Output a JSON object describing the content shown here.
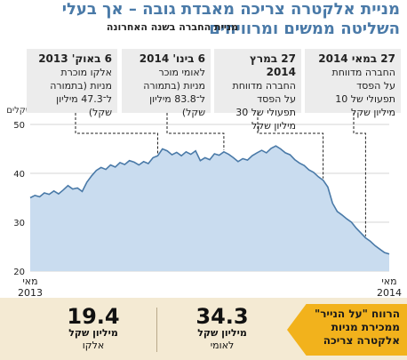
{
  "header": {
    "title_line1": "מניית אלקטרה צריכה מאבדת גובה – אך בעלי",
    "title_line2": "השליטה ממשים ומרוויחים",
    "subtitle": "מניית החברה בשנה האחרונה"
  },
  "callouts": [
    {
      "date": "6 באוק' 2013",
      "desc": "אלקו מוכרת\nמניות (בתמורה\nל־47.3 מיליון\nשקל)"
    },
    {
      "date": "6 בינו' 2014",
      "desc": "לאומי מוכר\nמניות (בתמורה\nל־83.8 מיליון\nשקל)"
    },
    {
      "date": "27 במרץ 2014",
      "desc": "החברה מדווחת\nעל הפסד\nתפעולי של 30\nמיליון שקל"
    },
    {
      "date": "27 במאי 2014",
      "desc": "החברה מדווחת\nעל הפסד\nתפעולי של 10\nמיליון שקל"
    }
  ],
  "stats": [
    {
      "value": "19.4",
      "unit": "מיליון שקל",
      "who": "אלקו"
    },
    {
      "value": "34.3",
      "unit": "מיליון שקל",
      "who": "לאומי"
    }
  ],
  "banner": {
    "line1": "הרווח \"על הנייר\"",
    "line2": "ממכירת מניות",
    "line3": "אלקטרה צריכה"
  },
  "colors": {
    "line": "#4a7aa8",
    "area": "#c9dcef",
    "banner": "#f2b21c",
    "bottom": "#f4ead3",
    "title": "#4a7aa8"
  },
  "chart_data": {
    "type": "area",
    "ylabel": "שקלים",
    "ylim": [
      20,
      50
    ],
    "y_ticks": [
      20,
      30,
      40,
      50
    ],
    "x_tick_labels": [
      {
        "month": "מאי",
        "year": "2013"
      },
      {
        "month": "מאי",
        "year": "2014"
      }
    ],
    "grid": true,
    "series": [
      {
        "values": [
          35,
          35.5,
          35.2,
          36,
          35.7,
          36.4,
          35.8,
          36.6,
          37.5,
          36.8,
          37,
          36.3,
          38.2,
          39.5,
          40.6,
          41.2,
          40.8,
          41.7,
          41.3,
          42.2,
          41.8,
          42.6,
          42.3,
          41.7,
          42.4,
          42,
          43.2,
          43.6,
          45,
          44.6,
          43.8,
          44.3,
          43.6,
          44.4,
          43.9,
          44.6,
          42.6,
          43.2,
          42.8,
          44,
          43.7,
          44.4,
          43.9,
          43.2,
          42.4,
          43,
          42.7,
          43.6,
          44.2,
          44.7,
          44.2,
          45.1,
          45.6,
          45,
          44.2,
          43.8,
          42.8,
          42.1,
          41.6,
          40.7,
          40.2,
          39.3,
          38.6,
          37.2,
          33.9,
          32.2,
          31.5,
          30.7,
          30,
          28.8,
          27.8,
          26.8,
          26.1,
          25.2,
          24.5,
          23.8,
          23.5
        ]
      }
    ]
  }
}
